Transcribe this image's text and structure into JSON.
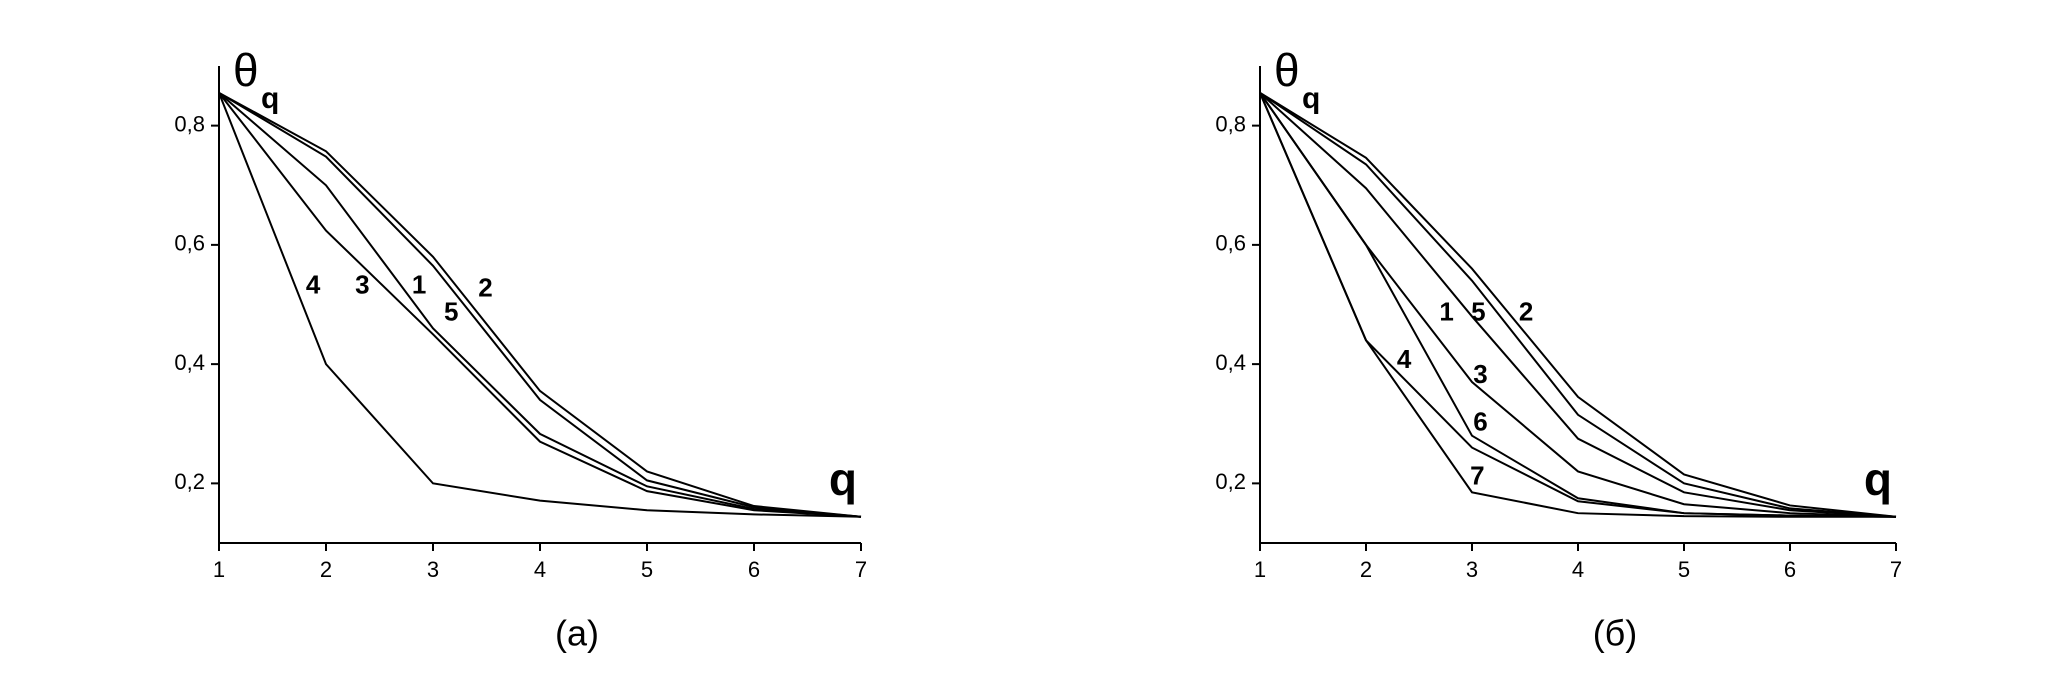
{
  "chart_data": [
    {
      "type": "line",
      "caption": "(a)",
      "y_label": "θ",
      "y_label_sub": "q",
      "x_label": "q",
      "x": [
        1,
        2,
        3,
        4,
        5,
        6,
        7
      ],
      "xlim": [
        1,
        7
      ],
      "xticks": [
        1,
        2,
        3,
        4,
        5,
        6,
        7
      ],
      "ylim": [
        0.1,
        0.9
      ],
      "yticks": [
        {
          "value": 0.2,
          "label": "0,2"
        },
        {
          "value": 0.4,
          "label": "0,4"
        },
        {
          "value": 0.6,
          "label": "0,6"
        },
        {
          "value": 0.8,
          "label": "0,8"
        }
      ],
      "series": [
        {
          "name": "1",
          "color": "#000000",
          "values": [
            0.855,
            0.7,
            0.46,
            0.283,
            0.195,
            0.157,
            0.144
          ]
        },
        {
          "name": "2",
          "color": "#000000",
          "values": [
            0.855,
            0.757,
            0.58,
            0.355,
            0.22,
            0.162,
            0.144
          ]
        },
        {
          "name": "3",
          "color": "#000000",
          "values": [
            0.855,
            0.624,
            0.45,
            0.27,
            0.187,
            0.155,
            0.144
          ]
        },
        {
          "name": "4",
          "color": "#000000",
          "values": [
            0.855,
            0.4,
            0.2,
            0.171,
            0.155,
            0.148,
            0.144
          ]
        },
        {
          "name": "5",
          "color": "#000000",
          "values": [
            0.855,
            0.748,
            0.565,
            0.34,
            0.205,
            0.16,
            0.144
          ]
        }
      ]
    },
    {
      "type": "line",
      "caption": "(б)",
      "y_label": "θ",
      "y_label_sub": "q",
      "x_label": "q",
      "x": [
        1,
        2,
        3,
        4,
        5,
        6,
        7
      ],
      "xlim": [
        1,
        7
      ],
      "xticks": [
        1,
        2,
        3,
        4,
        5,
        6,
        7
      ],
      "ylim": [
        0.1,
        0.9
      ],
      "yticks": [
        {
          "value": 0.2,
          "label": "0,2"
        },
        {
          "value": 0.4,
          "label": "0,4"
        },
        {
          "value": 0.6,
          "label": "0,6"
        },
        {
          "value": 0.8,
          "label": "0,8"
        }
      ],
      "series": [
        {
          "name": "1",
          "color": "#000000",
          "values": [
            0.855,
            0.695,
            0.48,
            0.275,
            0.185,
            0.155,
            0.144
          ]
        },
        {
          "name": "2",
          "color": "#000000",
          "values": [
            0.855,
            0.746,
            0.56,
            0.345,
            0.215,
            0.163,
            0.144
          ]
        },
        {
          "name": "3",
          "color": "#000000",
          "values": [
            0.855,
            0.6,
            0.37,
            0.22,
            0.165,
            0.15,
            0.144
          ]
        },
        {
          "name": "4",
          "color": "#000000",
          "values": [
            0.855,
            0.44,
            0.26,
            0.17,
            0.15,
            0.146,
            0.144
          ]
        },
        {
          "name": "5",
          "color": "#000000",
          "values": [
            0.855,
            0.735,
            0.54,
            0.315,
            0.2,
            0.158,
            0.144
          ]
        },
        {
          "name": "6",
          "color": "#000000",
          "values": [
            0.855,
            0.6,
            0.28,
            0.175,
            0.15,
            0.146,
            0.144
          ]
        },
        {
          "name": "7",
          "color": "#000000",
          "values": [
            0.855,
            0.44,
            0.185,
            0.15,
            0.145,
            0.144,
            0.144
          ]
        }
      ]
    }
  ]
}
